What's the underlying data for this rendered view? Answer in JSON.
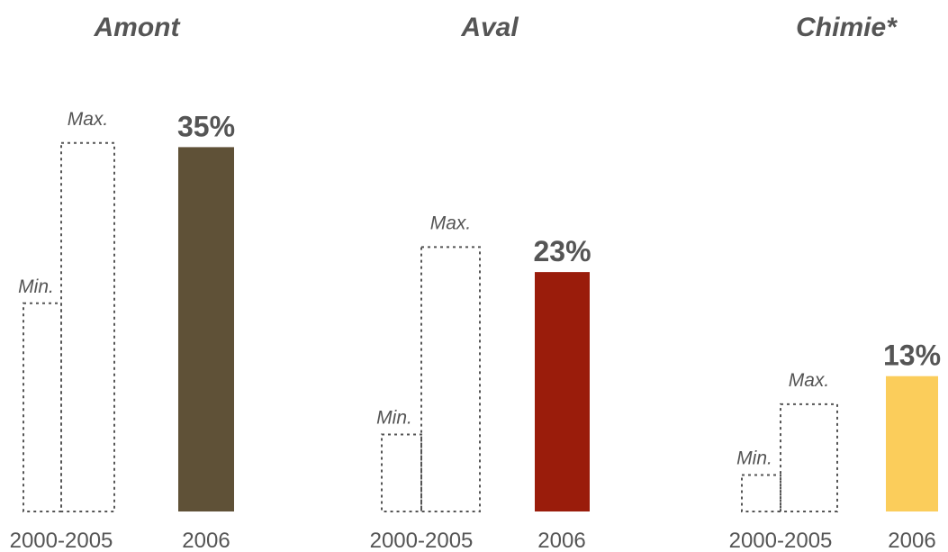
{
  "chart_data": [
    {
      "type": "bar",
      "title": "Amont",
      "categories": [
        "2000-2005",
        "2006"
      ],
      "range_2000_2005": {
        "min_label": "Min.",
        "max_label": "Max.",
        "min": 20.0,
        "max": 35.4
      },
      "value_2006": 35,
      "value_label_2006": "35%",
      "colors": {
        "bar_2006": "#5f5137"
      }
    },
    {
      "type": "bar",
      "title": "Aval",
      "categories": [
        "2000-2005",
        "2006"
      ],
      "range_2000_2005": {
        "min_label": "Min.",
        "max_label": "Max.",
        "min": 7.4,
        "max": 25.4
      },
      "value_2006": 23,
      "value_label_2006": "23%",
      "colors": {
        "bar_2006": "#9a1c0b"
      }
    },
    {
      "type": "bar",
      "title": "Chimie*",
      "categories": [
        "2000-2005",
        "2006"
      ],
      "range_2000_2005": {
        "min_label": "Min.",
        "max_label": "Max.",
        "min": 3.5,
        "max": 10.3
      },
      "value_2006": 13,
      "value_label_2006": "13%",
      "colors": {
        "bar_2006": "#fbcd5b"
      }
    }
  ],
  "colors": {
    "text": "#555555",
    "dotted_outline": "#555555"
  }
}
